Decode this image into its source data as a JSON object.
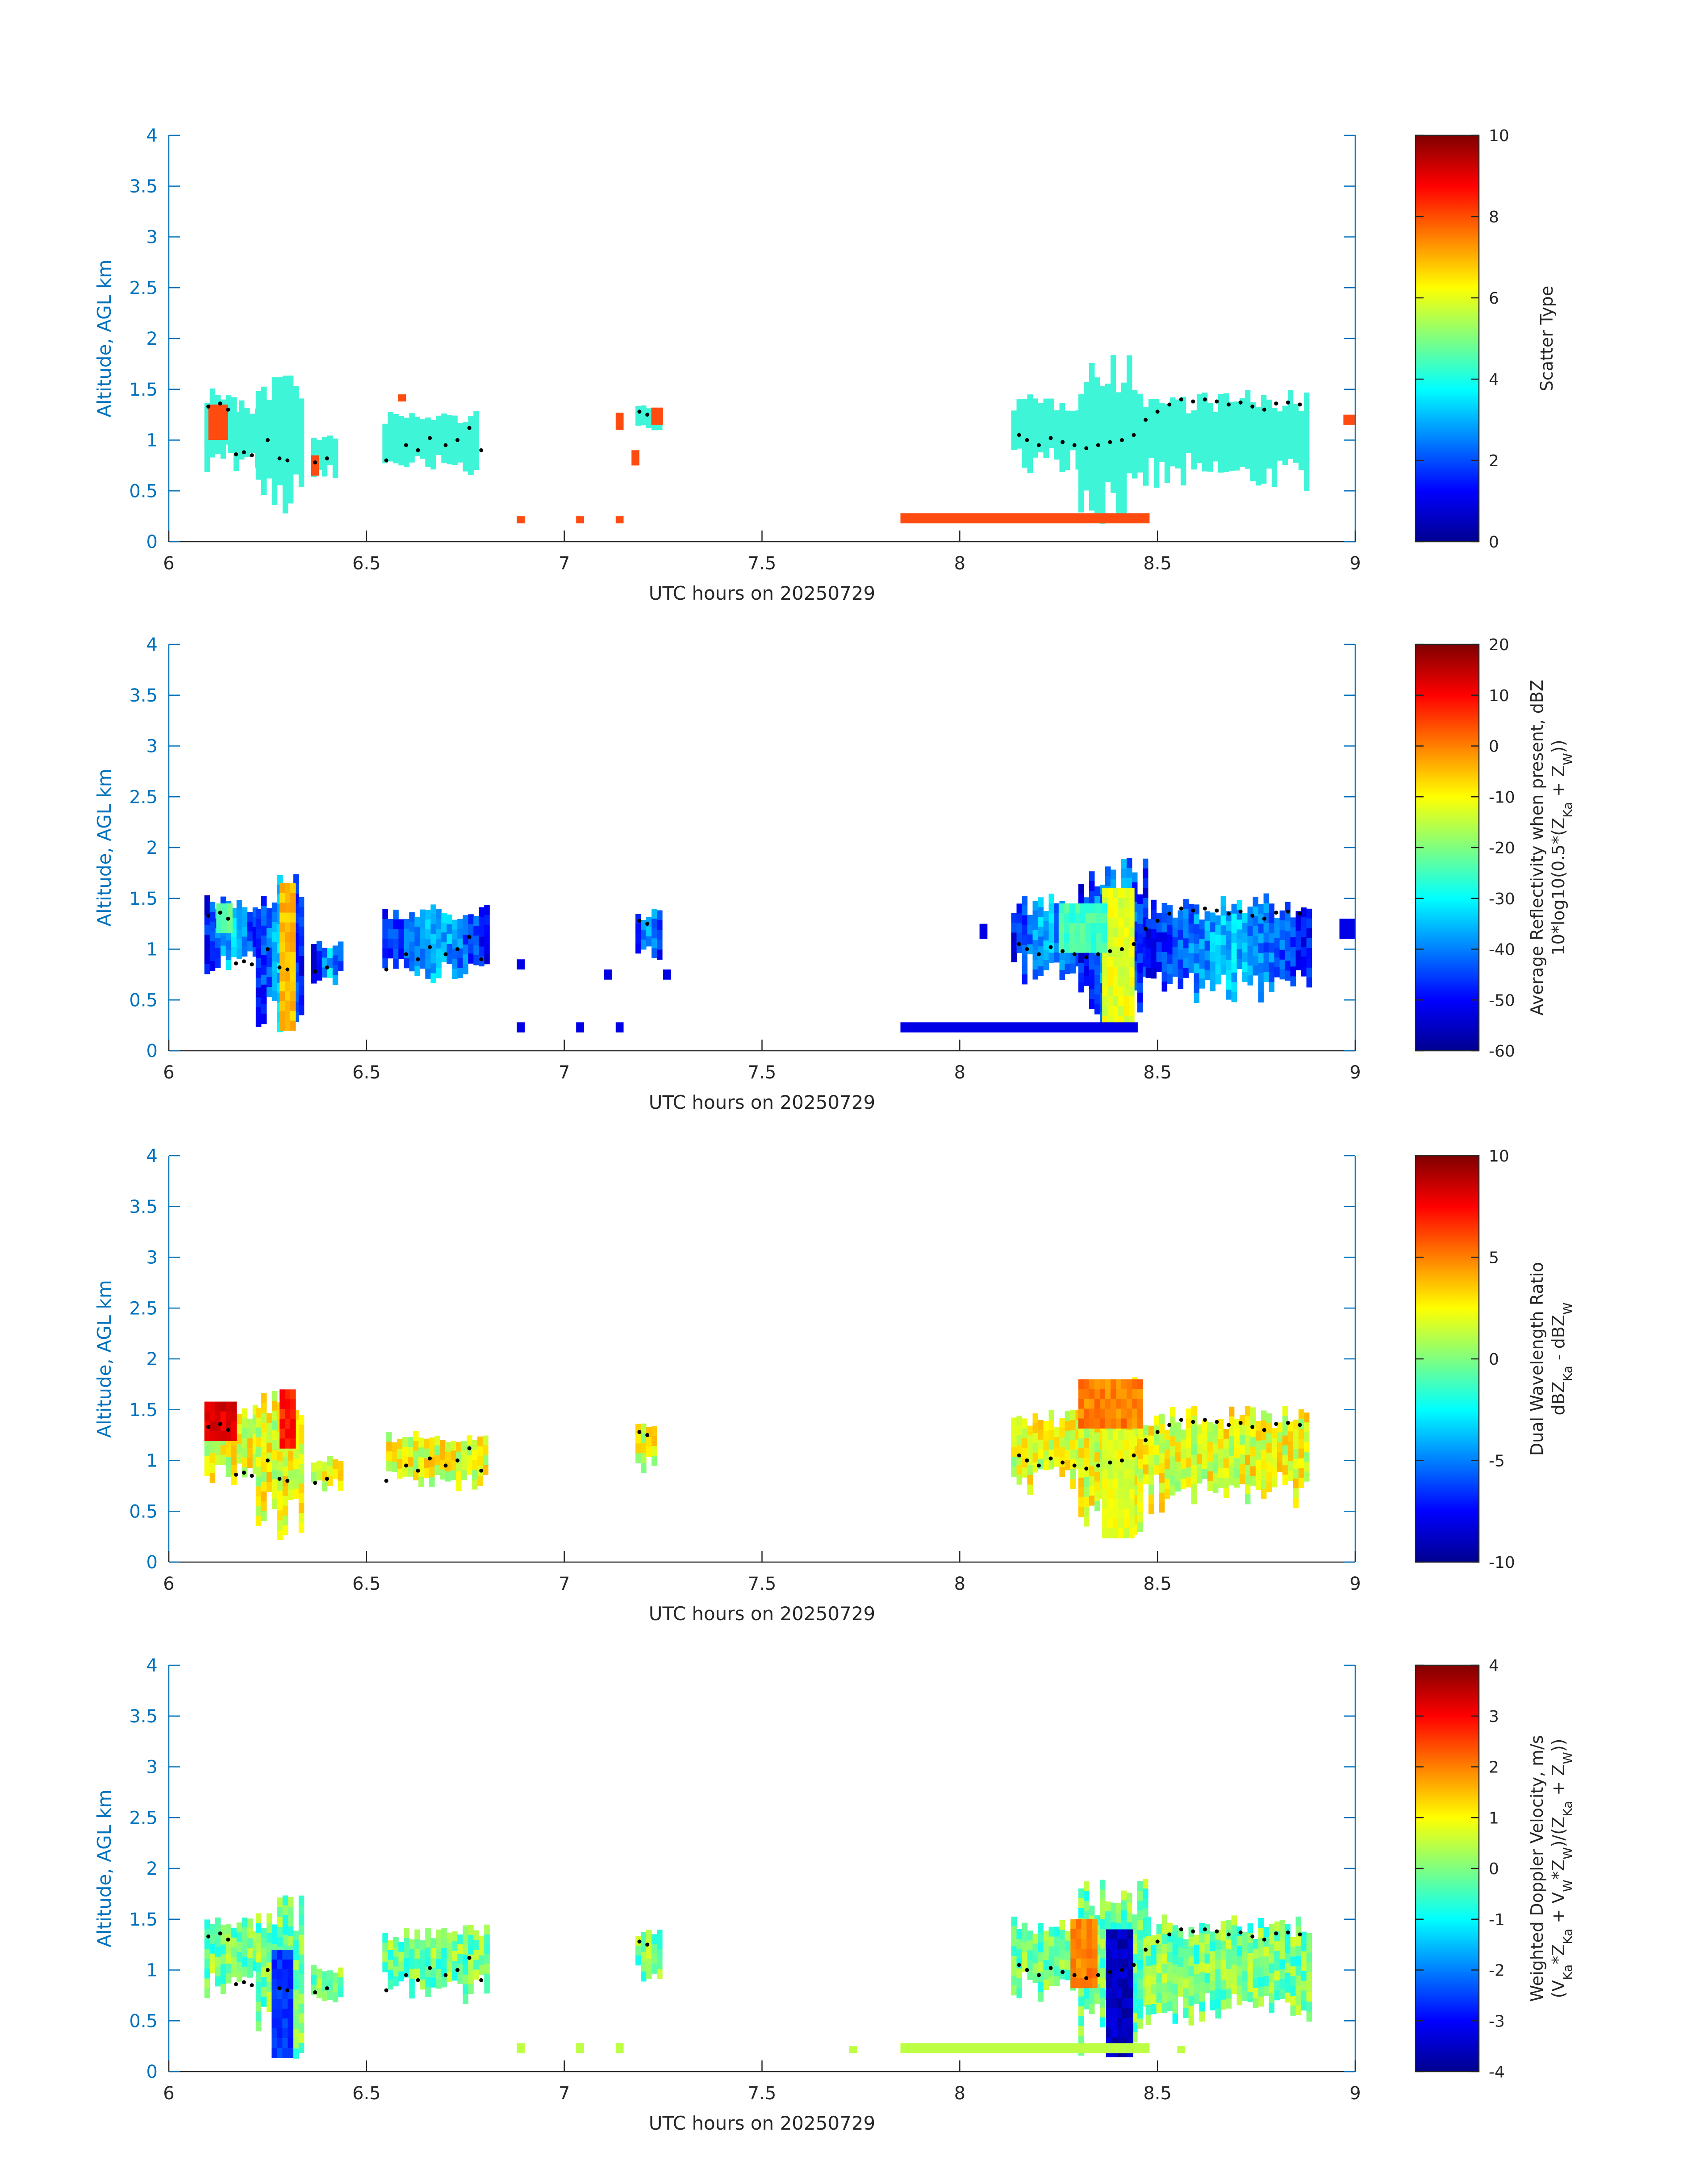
{
  "palette": {
    "axis": "#0072BD",
    "text": "#262626",
    "cyan": "#3ff5d8",
    "orange": "#ff4a10"
  },
  "chart_data": [
    {
      "type": "heatmap",
      "name": "scatter-type",
      "xlabel": "UTC hours on 20250729",
      "ylabel": "Altitude, AGL km",
      "xlim": [
        6,
        9
      ],
      "ylim": [
        0,
        4
      ],
      "xticks": [
        "6",
        "6.5",
        "7",
        "7.5",
        "8",
        "8.5",
        "9"
      ],
      "yticks": [
        "0",
        "0.5",
        "1",
        "1.5",
        "2",
        "2.5",
        "3",
        "3.5",
        "4"
      ],
      "colorbar": {
        "label": [
          "Scatter Type"
        ],
        "ticks": [
          "0",
          "2",
          "4",
          "6",
          "8",
          "10"
        ],
        "range": [
          0,
          10
        ]
      },
      "fill": "cyan",
      "regions": [
        {
          "x": [
            6.09,
            6.16
          ],
          "y": [
            0.75,
            1.55
          ]
        },
        {
          "x": [
            6.15,
            6.22
          ],
          "y": [
            0.7,
            1.4
          ]
        },
        {
          "x": [
            6.22,
            6.33
          ],
          "y": [
            0.2,
            1.75
          ]
        },
        {
          "x": [
            6.36,
            6.42
          ],
          "y": [
            0.65,
            1.05
          ]
        },
        {
          "x": [
            6.54,
            6.78
          ],
          "y": [
            0.7,
            1.3
          ]
        },
        {
          "x": [
            7.18,
            7.24
          ],
          "y": [
            1.1,
            1.35
          ]
        },
        {
          "x": [
            8.13,
            8.3
          ],
          "y": [
            0.75,
            1.45
          ]
        },
        {
          "x": [
            8.3,
            8.45
          ],
          "y": [
            0.2,
            1.85
          ]
        },
        {
          "x": [
            8.45,
            8.88
          ],
          "y": [
            0.55,
            1.5
          ]
        }
      ],
      "patches": [
        {
          "x": [
            6.1,
            6.15
          ],
          "y": [
            1.0,
            1.35
          ]
        },
        {
          "x": [
            6.36,
            6.38
          ],
          "y": [
            0.65,
            0.85
          ]
        },
        {
          "x": [
            6.58,
            6.6
          ],
          "y": [
            1.38,
            1.45
          ]
        },
        {
          "x": [
            7.13,
            7.15
          ],
          "y": [
            1.1,
            1.27
          ]
        },
        {
          "x": [
            7.17,
            7.19
          ],
          "y": [
            0.75,
            0.9
          ]
        },
        {
          "x": [
            7.22,
            7.25
          ],
          "y": [
            1.15,
            1.32
          ]
        },
        {
          "x": [
            6.88,
            6.9
          ],
          "y": [
            0.18,
            0.25
          ]
        },
        {
          "x": [
            7.03,
            7.05
          ],
          "y": [
            0.18,
            0.25
          ]
        },
        {
          "x": [
            7.13,
            7.15
          ],
          "y": [
            0.18,
            0.25
          ]
        },
        {
          "x": [
            7.85,
            8.48
          ],
          "y": [
            0.18,
            0.28
          ]
        },
        {
          "x": [
            8.97,
            9.0
          ],
          "y": [
            1.15,
            1.25
          ]
        }
      ]
    },
    {
      "type": "heatmap",
      "name": "reflectivity",
      "xlabel": "UTC hours on 20250729",
      "ylabel": "Altitude, AGL km",
      "xlim": [
        6,
        9
      ],
      "ylim": [
        0,
        4
      ],
      "xticks": [
        "6",
        "6.5",
        "7",
        "7.5",
        "8",
        "8.5",
        "9"
      ],
      "yticks": [
        "0",
        "0.5",
        "1",
        "1.5",
        "2",
        "2.5",
        "3",
        "3.5",
        "4"
      ],
      "colorbar": {
        "label": [
          "Average Reflectivity when present, dBZ",
          "10*log10(0.5*(Z",
          "Ka",
          " + Z",
          "W",
          "))"
        ],
        "ticks": [
          "-60",
          "-50",
          "-40",
          "-30",
          "-20",
          "-10",
          "0",
          "10",
          "20"
        ],
        "range": [
          -60,
          20
        ]
      },
      "fill": "blue",
      "regions": [
        {
          "x": [
            6.09,
            6.22
          ],
          "y": [
            0.8,
            1.55
          ]
        },
        {
          "x": [
            6.22,
            6.33
          ],
          "y": [
            0.2,
            1.75
          ]
        },
        {
          "x": [
            6.36,
            6.44
          ],
          "y": [
            0.7,
            1.1
          ]
        },
        {
          "x": [
            6.54,
            6.8
          ],
          "y": [
            0.7,
            1.45
          ]
        },
        {
          "x": [
            7.18,
            7.24
          ],
          "y": [
            0.9,
            1.4
          ]
        },
        {
          "x": [
            8.13,
            8.3
          ],
          "y": [
            0.7,
            1.55
          ]
        },
        {
          "x": [
            8.3,
            8.47
          ],
          "y": [
            0.2,
            1.9
          ]
        },
        {
          "x": [
            8.47,
            8.88
          ],
          "y": [
            0.5,
            1.55
          ]
        }
      ],
      "cores": [
        {
          "x": [
            6.28,
            6.31
          ],
          "y": [
            0.25,
            1.65
          ],
          "v": -5
        },
        {
          "x": [
            8.36,
            8.44
          ],
          "y": [
            0.25,
            1.6
          ],
          "v": -12
        },
        {
          "x": [
            8.25,
            8.36
          ],
          "y": [
            1.0,
            1.45
          ],
          "v": -25
        },
        {
          "x": [
            6.12,
            6.16
          ],
          "y": [
            1.2,
            1.45
          ],
          "v": -22
        }
      ],
      "patches": [
        {
          "x": [
            7.85,
            8.45
          ],
          "y": [
            0.18,
            0.28
          ]
        },
        {
          "x": [
            6.88,
            6.9
          ],
          "y": [
            0.18,
            0.28
          ]
        },
        {
          "x": [
            7.03,
            7.05
          ],
          "y": [
            0.18,
            0.28
          ]
        },
        {
          "x": [
            7.13,
            7.15
          ],
          "y": [
            0.18,
            0.28
          ]
        },
        {
          "x": [
            6.88,
            6.9
          ],
          "y": [
            0.8,
            0.9
          ]
        },
        {
          "x": [
            7.1,
            7.12
          ],
          "y": [
            0.7,
            0.8
          ]
        },
        {
          "x": [
            7.25,
            7.27
          ],
          "y": [
            0.7,
            0.8
          ]
        },
        {
          "x": [
            8.05,
            8.07
          ],
          "y": [
            1.1,
            1.25
          ]
        },
        {
          "x": [
            8.96,
            9.0
          ],
          "y": [
            1.1,
            1.3
          ]
        }
      ]
    },
    {
      "type": "heatmap",
      "name": "dwr",
      "xlabel": "UTC hours on 20250729",
      "ylabel": "Altitude, AGL km",
      "xlim": [
        6,
        9
      ],
      "ylim": [
        0,
        4
      ],
      "xticks": [
        "6",
        "6.5",
        "7",
        "7.5",
        "8",
        "8.5",
        "9"
      ],
      "yticks": [
        "0",
        "0.5",
        "1",
        "1.5",
        "2",
        "2.5",
        "3",
        "3.5",
        "4"
      ],
      "colorbar": {
        "label": [
          "Dual Wavelength Ratio",
          "dBZ",
          "Ka",
          " - dBZ",
          "W"
        ],
        "ticks": [
          "-10",
          "-5",
          "0",
          "5",
          "10"
        ],
        "range": [
          -10,
          10
        ]
      },
      "fill": "dwr",
      "regions": [
        {
          "x": [
            6.09,
            6.22
          ],
          "y": [
            0.8,
            1.58
          ]
        },
        {
          "x": [
            6.22,
            6.33
          ],
          "y": [
            0.25,
            1.72
          ]
        },
        {
          "x": [
            6.36,
            6.44
          ],
          "y": [
            0.75,
            1.05
          ]
        },
        {
          "x": [
            6.55,
            6.8
          ],
          "y": [
            0.75,
            1.3
          ]
        },
        {
          "x": [
            7.18,
            7.23
          ],
          "y": [
            0.95,
            1.4
          ]
        },
        {
          "x": [
            8.13,
            8.3
          ],
          "y": [
            0.75,
            1.5
          ]
        },
        {
          "x": [
            8.3,
            8.45
          ],
          "y": [
            0.25,
            1.85
          ]
        },
        {
          "x": [
            8.45,
            8.88
          ],
          "y": [
            0.55,
            1.55
          ]
        }
      ],
      "cores": [
        {
          "x": [
            6.09,
            6.16
          ],
          "y": [
            1.25,
            1.58
          ],
          "v": 8
        },
        {
          "x": [
            6.28,
            6.31
          ],
          "y": [
            1.2,
            1.7
          ],
          "v": 7
        },
        {
          "x": [
            8.3,
            8.45
          ],
          "y": [
            1.4,
            1.8
          ],
          "v": 5
        },
        {
          "x": [
            8.36,
            8.43
          ],
          "y": [
            0.25,
            1.3
          ],
          "v": 2
        }
      ]
    },
    {
      "type": "heatmap",
      "name": "doppler",
      "xlabel": "UTC hours on 20250729",
      "ylabel": "Altitude, AGL km",
      "xlim": [
        6,
        9
      ],
      "ylim": [
        0,
        4
      ],
      "xticks": [
        "6",
        "6.5",
        "7",
        "7.5",
        "8",
        "8.5",
        "9"
      ],
      "yticks": [
        "0",
        "0.5",
        "1",
        "1.5",
        "2",
        "2.5",
        "3",
        "3.5",
        "4"
      ],
      "colorbar": {
        "label": [
          "Weighted Doppler Velocity, m/s",
          "(V",
          "Ka",
          "*Z",
          "Ka",
          " + V",
          "W",
          "*Z",
          "W",
          ")/(Z",
          "Ka",
          " + Z",
          "W",
          "))"
        ],
        "ticks": [
          "-4",
          "-3",
          "-2",
          "-1",
          "0",
          "1",
          "2",
          "3",
          "4"
        ],
        "range": [
          -4,
          4
        ]
      },
      "fill": "doppler",
      "regions": [
        {
          "x": [
            6.09,
            6.22
          ],
          "y": [
            0.8,
            1.55
          ]
        },
        {
          "x": [
            6.22,
            6.33
          ],
          "y": [
            0.2,
            1.75
          ]
        },
        {
          "x": [
            6.36,
            6.44
          ],
          "y": [
            0.7,
            1.05
          ]
        },
        {
          "x": [
            6.54,
            6.8
          ],
          "y": [
            0.75,
            1.45
          ]
        },
        {
          "x": [
            7.18,
            7.24
          ],
          "y": [
            0.9,
            1.4
          ]
        },
        {
          "x": [
            8.13,
            8.3
          ],
          "y": [
            0.7,
            1.55
          ]
        },
        {
          "x": [
            8.3,
            8.47
          ],
          "y": [
            0.2,
            1.9
          ]
        },
        {
          "x": [
            8.47,
            8.88
          ],
          "y": [
            0.5,
            1.55
          ]
        }
      ],
      "cores": [
        {
          "x": [
            6.26,
            6.31
          ],
          "y": [
            0.2,
            1.2
          ],
          "v": -2.6
        },
        {
          "x": [
            8.37,
            8.43
          ],
          "y": [
            0.2,
            1.4
          ],
          "v": -3.5
        },
        {
          "x": [
            8.28,
            8.34
          ],
          "y": [
            0.9,
            1.5
          ],
          "v": 2.0
        }
      ],
      "patches": [
        {
          "x": [
            7.85,
            8.48
          ],
          "y": [
            0.18,
            0.28
          ]
        },
        {
          "x": [
            6.88,
            6.9
          ],
          "y": [
            0.18,
            0.28
          ]
        },
        {
          "x": [
            7.03,
            7.05
          ],
          "y": [
            0.18,
            0.28
          ]
        },
        {
          "x": [
            7.13,
            7.15
          ],
          "y": [
            0.18,
            0.28
          ]
        },
        {
          "x": [
            7.72,
            7.74
          ],
          "y": [
            0.18,
            0.25
          ]
        },
        {
          "x": [
            8.55,
            8.57
          ],
          "y": [
            0.18,
            0.25
          ]
        }
      ]
    }
  ],
  "cloud_base_dots": [
    {
      "x": 6.1,
      "y": 1.33
    },
    {
      "x": 6.13,
      "y": 1.36
    },
    {
      "x": 6.15,
      "y": 1.3
    },
    {
      "x": 6.17,
      "y": 0.86
    },
    {
      "x": 6.19,
      "y": 0.88
    },
    {
      "x": 6.21,
      "y": 0.85
    },
    {
      "x": 6.25,
      "y": 1.0
    },
    {
      "x": 6.28,
      "y": 0.82
    },
    {
      "x": 6.3,
      "y": 0.8
    },
    {
      "x": 6.37,
      "y": 0.78
    },
    {
      "x": 6.4,
      "y": 0.82
    },
    {
      "x": 6.55,
      "y": 0.8
    },
    {
      "x": 6.6,
      "y": 0.95
    },
    {
      "x": 6.63,
      "y": 0.9
    },
    {
      "x": 6.66,
      "y": 1.02
    },
    {
      "x": 6.7,
      "y": 0.95
    },
    {
      "x": 6.73,
      "y": 1.0
    },
    {
      "x": 6.76,
      "y": 1.12
    },
    {
      "x": 6.79,
      "y": 0.9
    },
    {
      "x": 7.19,
      "y": 1.28
    },
    {
      "x": 7.21,
      "y": 1.25
    },
    {
      "x": 8.15,
      "y": 1.05
    },
    {
      "x": 8.17,
      "y": 1.0
    },
    {
      "x": 8.2,
      "y": 0.95
    },
    {
      "x": 8.23,
      "y": 1.02
    },
    {
      "x": 8.26,
      "y": 0.98
    },
    {
      "x": 8.29,
      "y": 0.95
    },
    {
      "x": 8.32,
      "y": 0.92
    },
    {
      "x": 8.35,
      "y": 0.95
    },
    {
      "x": 8.38,
      "y": 0.98
    },
    {
      "x": 8.41,
      "y": 1.0
    },
    {
      "x": 8.44,
      "y": 1.05
    },
    {
      "x": 8.47,
      "y": 1.2
    },
    {
      "x": 8.5,
      "y": 1.28
    },
    {
      "x": 8.53,
      "y": 1.35
    },
    {
      "x": 8.56,
      "y": 1.4
    },
    {
      "x": 8.59,
      "y": 1.38
    },
    {
      "x": 8.62,
      "y": 1.4
    },
    {
      "x": 8.65,
      "y": 1.38
    },
    {
      "x": 8.68,
      "y": 1.35
    },
    {
      "x": 8.71,
      "y": 1.37
    },
    {
      "x": 8.74,
      "y": 1.33
    },
    {
      "x": 8.77,
      "y": 1.3
    },
    {
      "x": 8.8,
      "y": 1.36
    },
    {
      "x": 8.83,
      "y": 1.37
    },
    {
      "x": 8.86,
      "y": 1.35
    }
  ]
}
